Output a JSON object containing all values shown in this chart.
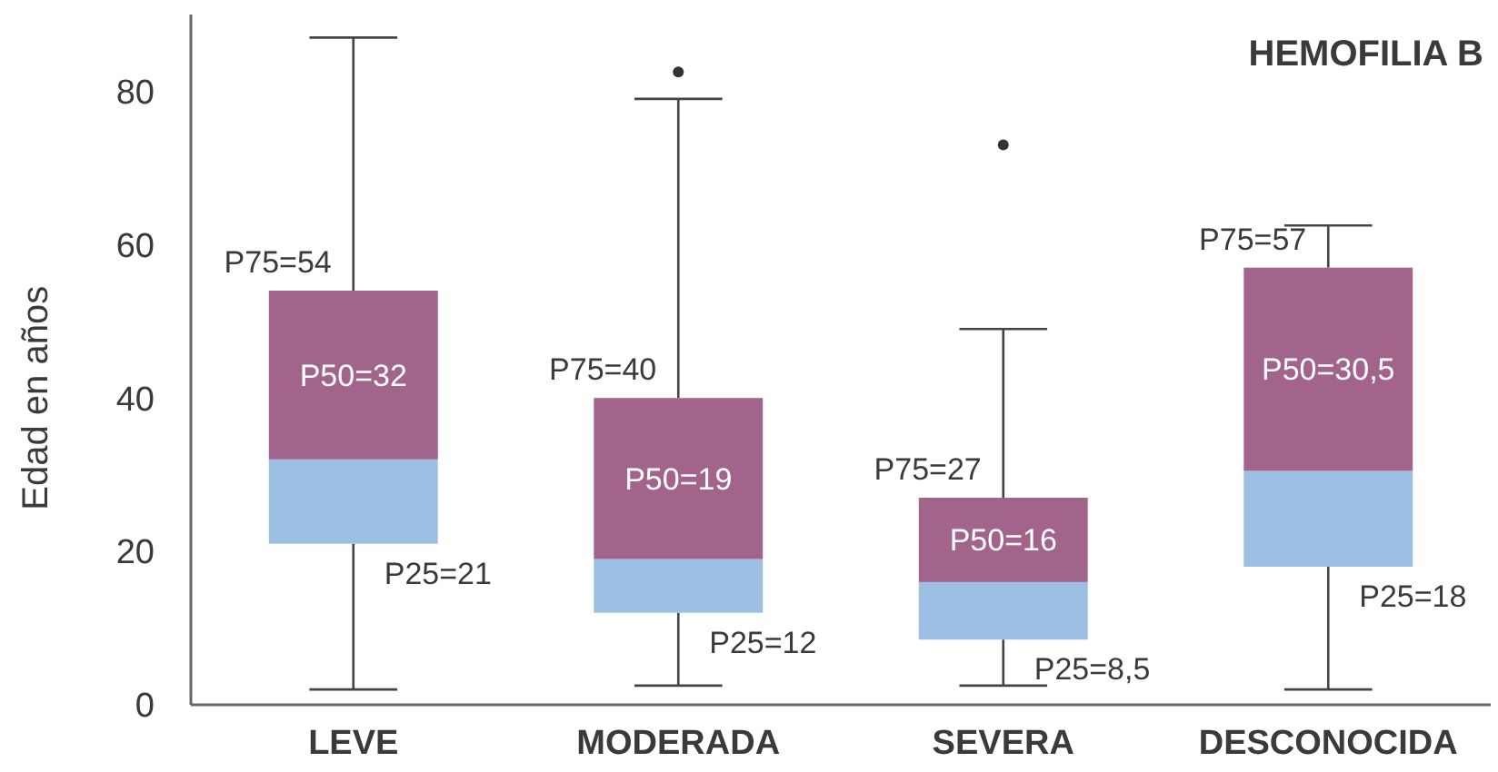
{
  "chart_data": {
    "type": "box",
    "title": "HEMOFILIA B",
    "ylabel": "Edad en años",
    "categories": [
      "LEVE",
      "MODERADA",
      "SEVERA",
      "DESCONOCIDA"
    ],
    "ylim": [
      0,
      90
    ],
    "yticks": [
      0,
      20,
      40,
      60,
      80
    ],
    "grid": false,
    "colors": [
      "#9dbfe4",
      "#9dbfe4",
      "#9dbfe4",
      "#9dbfe4"
    ],
    "color": "#a3648c",
    "boxes": [
      {
        "low": 2,
        "q1": 21,
        "median": 32,
        "q3": 54,
        "high": 87
      },
      {
        "low": 2.5,
        "q1": 12,
        "median": 19,
        "q3": 40,
        "high": 79,
        "outliers": [
          82.5
        ]
      },
      {
        "low": 2.5,
        "q1": 8.5,
        "median": 16,
        "q3": 27,
        "high": 49,
        "outliers": [
          73
        ]
      },
      {
        "low": 2,
        "q1": 18,
        "median": 30.5,
        "q3": 57,
        "high": 62.5
      }
    ],
    "annotations": [
      {
        "text": "P75=54",
        "x": "LEVE",
        "y": 54
      },
      {
        "text": "P50=32",
        "x": "LEVE",
        "y": 32
      },
      {
        "text": "P25=21",
        "x": "LEVE",
        "y": 21
      },
      {
        "text": "P75=40",
        "x": "MODERADA",
        "y": 40
      },
      {
        "text": "P50=19",
        "x": "MODERADA",
        "y": 19
      },
      {
        "text": "P25=12",
        "x": "MODERADA",
        "y": 12
      },
      {
        "text": "P75=27",
        "x": "SEVERA",
        "y": 27
      },
      {
        "text": "P50=16",
        "x": "SEVERA",
        "y": 16
      },
      {
        "text": "P25=8,5",
        "x": "SEVERA",
        "y": 8.5
      },
      {
        "text": "P75=57",
        "x": "DESCONOCIDA",
        "y": 57
      },
      {
        "text": "P50=30,5",
        "x": "DESCONOCIDA",
        "y": 30.5
      },
      {
        "text": "P25=18",
        "x": "DESCONOCIDA",
        "y": 18
      }
    ]
  }
}
